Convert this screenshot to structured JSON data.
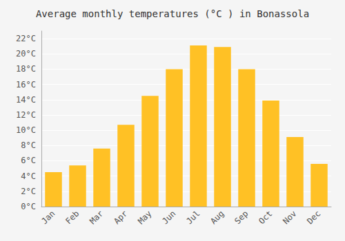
{
  "chart_data": {
    "type": "bar",
    "title": "Average monthly temperatures (°C ) in Bonassola",
    "categories": [
      "Jan",
      "Feb",
      "Mar",
      "Apr",
      "May",
      "Jun",
      "Jul",
      "Aug",
      "Sep",
      "Oct",
      "Nov",
      "Dec"
    ],
    "values": [
      4.5,
      5.4,
      7.6,
      10.7,
      14.5,
      18.0,
      21.1,
      20.9,
      18.0,
      13.9,
      9.1,
      5.6
    ],
    "color": "#FFC125",
    "ylim": [
      0,
      23
    ],
    "yticks": [
      {
        "value": 0,
        "label": "0°C"
      },
      {
        "value": 2,
        "label": "2°C"
      },
      {
        "value": 4,
        "label": "4°C"
      },
      {
        "value": 6,
        "label": "6°C"
      },
      {
        "value": 8,
        "label": "8°C"
      },
      {
        "value": 10,
        "label": "10°C"
      },
      {
        "value": 12,
        "label": "12°C"
      },
      {
        "value": 14,
        "label": "14°C"
      },
      {
        "value": 16,
        "label": "16°C"
      },
      {
        "value": 18,
        "label": "18°C"
      },
      {
        "value": 20,
        "label": "20°C"
      },
      {
        "value": 22,
        "label": "22°C"
      }
    ],
    "grid": true
  }
}
